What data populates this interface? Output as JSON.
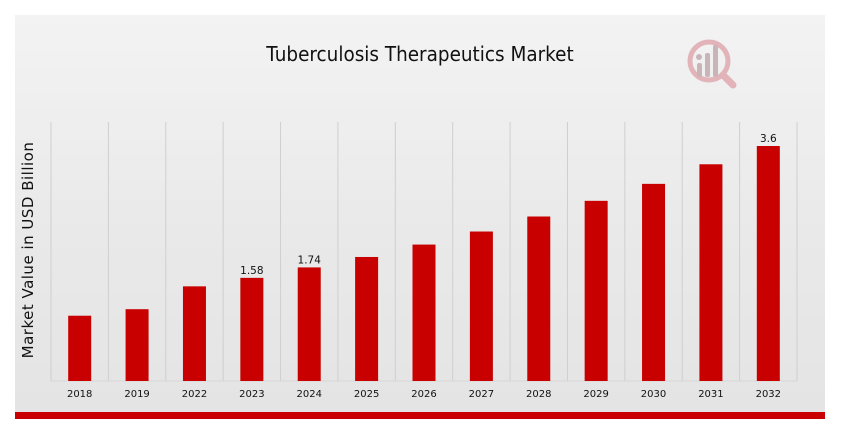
{
  "chart_data": {
    "type": "bar",
    "title": "Tuberculosis Therapeutics Market",
    "xlabel": "",
    "ylabel": "Market Value in USD Billion",
    "categories": [
      "2018",
      "2019",
      "2022",
      "2023",
      "2024",
      "2025",
      "2026",
      "2027",
      "2028",
      "2029",
      "2030",
      "2031",
      "2032"
    ],
    "values": [
      1.0,
      1.1,
      1.45,
      1.58,
      1.74,
      1.9,
      2.09,
      2.29,
      2.52,
      2.76,
      3.02,
      3.32,
      3.6
    ],
    "data_labels": {
      "3": "1.58",
      "4": "1.74",
      "12": "3.6"
    },
    "ylim": [
      0,
      3.6
    ],
    "grid": "vertical",
    "bar_color": "#c80000"
  },
  "colors": {
    "accent": "#c80000",
    "logo": "#d9a0a8"
  },
  "logo_icon": "bar-chart-magnifier-icon"
}
